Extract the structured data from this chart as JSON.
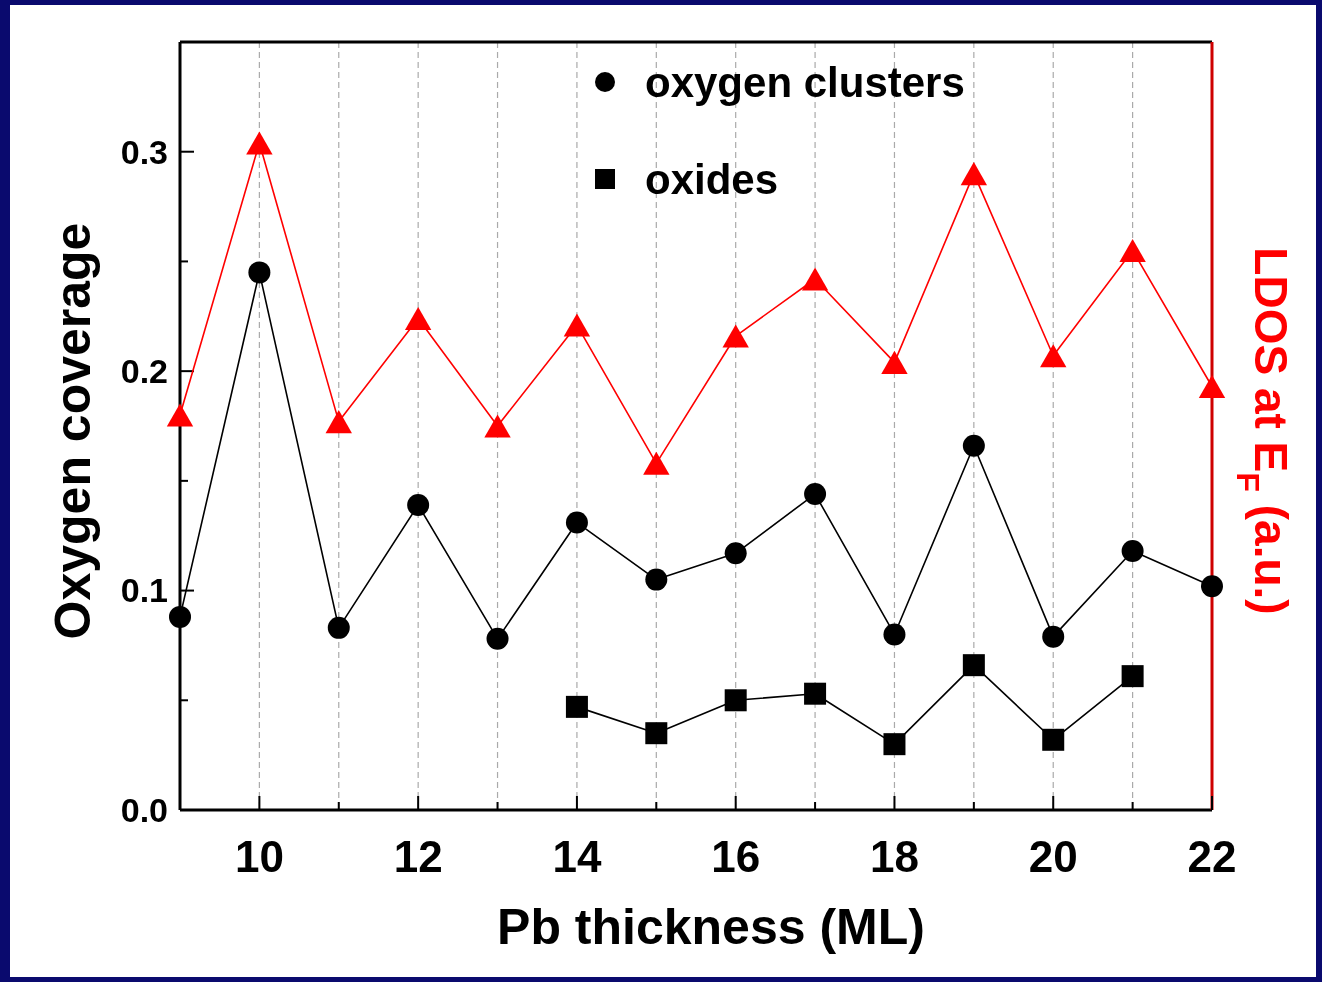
{
  "chart_data": {
    "type": "line",
    "xlabel": "Pb thickness (ML)",
    "ylabel": "Oxygen coverage",
    "y2label": "LDOS at E$_{F}$ (a.u.)",
    "x": [
      9,
      10,
      11,
      12,
      13,
      14,
      15,
      16,
      17,
      18,
      19,
      20,
      21,
      22
    ],
    "xlim": [
      9,
      22
    ],
    "xticks": [
      {
        "value": 9,
        "label": null
      },
      10,
      {
        "value": 11,
        "label": null
      },
      12,
      {
        "value": 13,
        "label": null
      },
      14,
      {
        "value": 15,
        "label": null
      },
      16,
      {
        "value": 17,
        "label": null
      },
      18,
      {
        "value": 19,
        "label": null
      },
      20,
      {
        "value": 21,
        "label": null
      },
      22
    ],
    "ylim": [
      0,
      0.35
    ],
    "yticks": [
      {
        "value": 0,
        "label": "0.0"
      },
      {
        "value": 0.05,
        "label": null
      },
      {
        "value": 0.1,
        "label": "0.1"
      },
      {
        "value": 0.15,
        "label": null
      },
      {
        "value": 0.2,
        "label": "0.2"
      },
      {
        "value": 0.25,
        "label": null
      },
      {
        "value": 0.3,
        "label": "0.3"
      }
    ],
    "grid": "x",
    "legend": "top",
    "series": [
      {
        "name": "oxygen clusters",
        "color": "#000000",
        "marker": "circle",
        "values": [
          0.088,
          0.245,
          0.083,
          0.139,
          0.078,
          0.131,
          0.105,
          0.117,
          0.144,
          0.08,
          0.166,
          0.079,
          0.118,
          0.102
        ]
      },
      {
        "name": "oxides",
        "color": "#000000",
        "marker": "square",
        "x": [
          14,
          15,
          16,
          17,
          18,
          19,
          20,
          21
        ],
        "values": [
          0.047,
          0.035,
          0.05,
          0.053,
          0.03,
          0.066,
          0.032,
          0.061
        ]
      },
      {
        "color": "#ff0000",
        "marker": "triangle",
        "values": [
          0.18,
          0.304,
          0.177,
          0.224,
          0.175,
          0.221,
          0.158,
          0.216,
          0.242,
          0.204,
          0.29,
          0.207,
          0.255,
          0.193
        ]
      }
    ]
  }
}
